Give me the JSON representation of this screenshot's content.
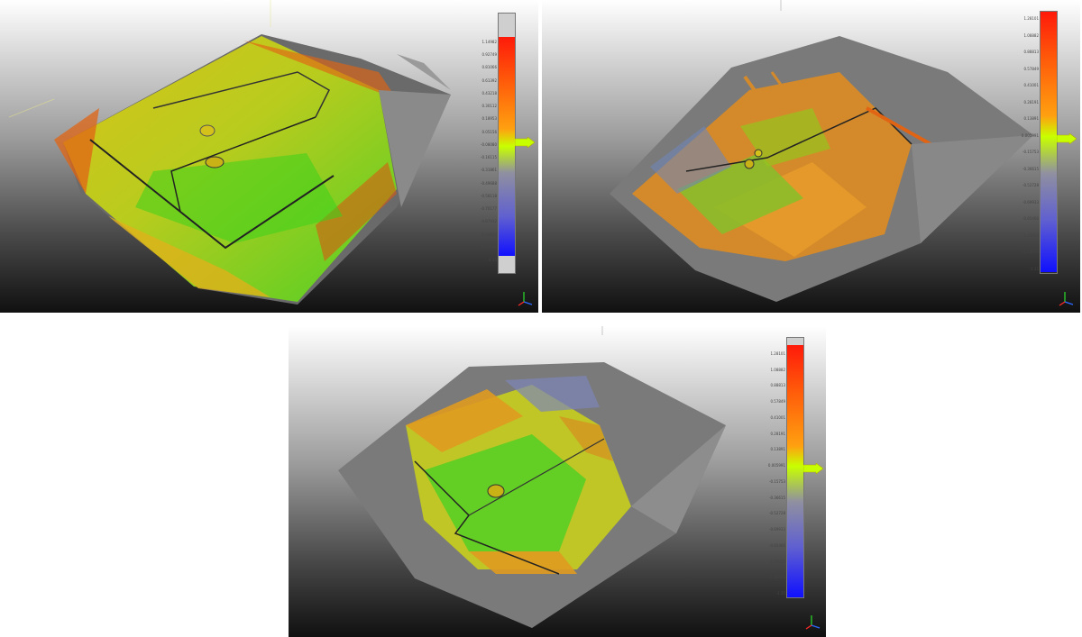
{
  "viewports": [
    {
      "id": "vp1",
      "scalar_field": {
        "cursor_value": "0.05156",
        "ticks": [
          "1.14982",
          "0.92749",
          "0.81066",
          "0.61392",
          "0.43218",
          "0.30112",
          "0.18953",
          "0.05156",
          "-0.08080",
          "-0.16115",
          "-0.31861",
          "-0.49688",
          "-0.58118",
          "-0.70177",
          "-0.87932",
          "-1.00835",
          "-1.14986",
          "-1.35"
        ]
      }
    },
    {
      "id": "vp2",
      "scalar_field": {
        "cursor_value": "0.005991",
        "ticks": [
          "1.28101",
          "1.08882",
          "0.88813",
          "0.57849",
          "0.41001",
          "0.28191",
          "0.13891",
          "0.005991",
          "-0.15753",
          "-0.36615",
          "-0.52728",
          "-0.69933",
          "-0.85466",
          "-1.03013",
          "-1.18699",
          "-1.35"
        ]
      }
    },
    {
      "id": "vp3",
      "scalar_field": {
        "cursor_value": "0.005991",
        "ticks": [
          "1.28101",
          "1.08882",
          "0.88813",
          "0.57849",
          "0.41001",
          "0.28191",
          "0.13891",
          "0.005991",
          "-0.15753",
          "-0.36615",
          "-0.52728",
          "-0.69933",
          "-0.85466",
          "-1.03013",
          "-1.18699",
          "-1.35"
        ]
      }
    }
  ],
  "colors": {
    "field_high": "#ff1a0a",
    "field_mid": "#ffcc00",
    "field_zero": "#c8ff00",
    "field_low": "#1010ff",
    "viewport_bg_top": "#ffffff",
    "viewport_bg_bottom": "#101010"
  },
  "icons": [
    "axis-gizmo-icon",
    "scalar-cursor-arrow-icon"
  ]
}
